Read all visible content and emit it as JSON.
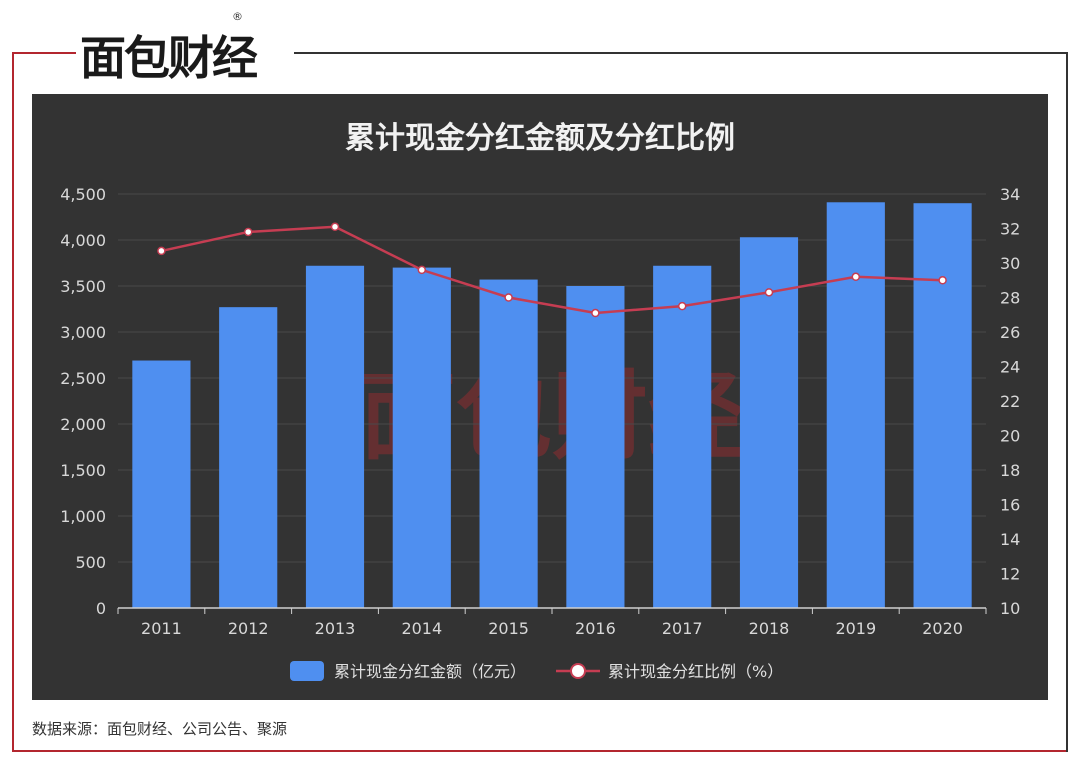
{
  "brand": {
    "logo_text": "面包财经"
  },
  "source_note": "数据来源：面包财经、公司公告、聚源",
  "colors": {
    "bar": "#4f8ff0",
    "line": "#c63d52",
    "panel": "#333333",
    "accent_red": "#b3262f"
  },
  "chart_data": {
    "type": "bar",
    "title": "累计现金分红金额及分红比例",
    "categories": [
      "2011",
      "2012",
      "2013",
      "2014",
      "2015",
      "2016",
      "2017",
      "2018",
      "2019",
      "2020"
    ],
    "series": [
      {
        "name": "累计现金分红金额（亿元）",
        "type": "bar",
        "axis": "left",
        "values": [
          2690,
          3270,
          3720,
          3700,
          3570,
          3500,
          3720,
          4030,
          4410,
          4400
        ]
      },
      {
        "name": "累计现金分红比例（%）",
        "type": "line",
        "axis": "right",
        "values": [
          30.7,
          31.8,
          32.1,
          29.6,
          28.0,
          27.1,
          27.5,
          28.3,
          29.2,
          29.0
        ]
      }
    ],
    "y_left": {
      "range": [
        0,
        4500
      ],
      "ticks": [
        "0",
        "500",
        "1,000",
        "1,500",
        "2,000",
        "2,500",
        "3,000",
        "3,500",
        "4,000",
        "4,500"
      ]
    },
    "y_right": {
      "range": [
        10,
        34
      ],
      "ticks": [
        "10",
        "12",
        "14",
        "16",
        "18",
        "20",
        "22",
        "24",
        "26",
        "28",
        "30",
        "32",
        "34"
      ]
    },
    "grid": true,
    "legend_position": "bottom"
  }
}
